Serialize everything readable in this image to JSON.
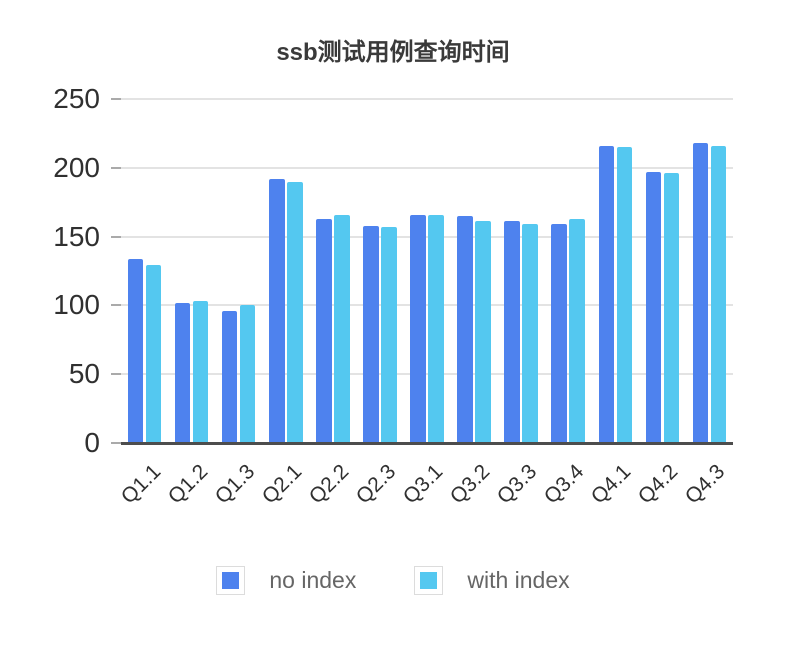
{
  "chart_data": {
    "type": "bar",
    "title": "ssb测试用例查询时间",
    "xlabel": "",
    "ylabel": "",
    "categories": [
      "Q1.1",
      "Q1.2",
      "Q1.3",
      "Q2.1",
      "Q2.2",
      "Q2.3",
      "Q3.1",
      "Q3.2",
      "Q3.3",
      "Q3.4",
      "Q4.1",
      "Q4.2",
      "Q4.3"
    ],
    "series": [
      {
        "name": "no index",
        "color": "#4e82ee",
        "values": [
          134,
          102,
          96,
          192,
          163,
          158,
          166,
          165,
          161,
          159,
          216,
          197,
          218
        ]
      },
      {
        "name": "with index",
        "color": "#54c8f0",
        "values": [
          129,
          103,
          100,
          190,
          166,
          157,
          166,
          161,
          159,
          163,
          215,
          196,
          216
        ]
      }
    ],
    "ylim": [
      0,
      250
    ],
    "yticks": [
      0,
      50,
      100,
      150,
      200,
      250
    ],
    "grid": true,
    "legend_position": "bottom"
  },
  "style_colors": {
    "gridline": "#e3e3e3",
    "axis_line": "#4d4d4d",
    "tick": "#aaaaaa",
    "axis_text": "#303030",
    "legend_text": "#666666",
    "title_text": "#3a3a3a"
  }
}
